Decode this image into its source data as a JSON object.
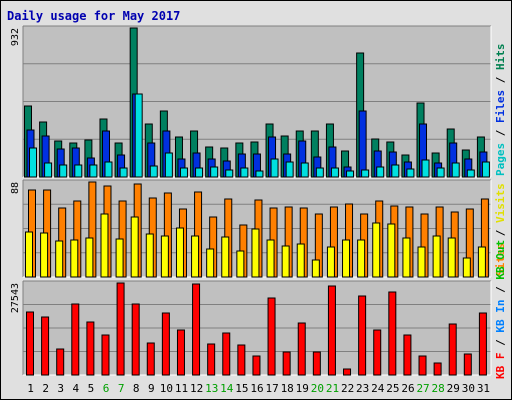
{
  "chart_data": [
    {
      "type": "bar",
      "title": "Daily usage for May 2017",
      "panel": "hits-files-pages",
      "ymax_label": "932",
      "legend": [
        {
          "text": "Pages",
          "color": "#00c0c0"
        },
        {
          "text": "Files",
          "color": "#0030e0"
        },
        {
          "text": "Hits",
          "color": "#008050"
        }
      ],
      "categories": [
        "1",
        "2",
        "3",
        "4",
        "5",
        "6",
        "7",
        "8",
        "9",
        "10",
        "11",
        "12",
        "13",
        "14",
        "15",
        "16",
        "17",
        "18",
        "19",
        "20",
        "21",
        "22",
        "23",
        "24",
        "25",
        "26",
        "27",
        "28",
        "29",
        "30",
        "31"
      ],
      "weekend_days": [
        "6",
        "7",
        "13",
        "14",
        "20",
        "21",
        "27",
        "28"
      ],
      "series": [
        {
          "name": "Hits",
          "color": "#008060",
          "values": [
            445,
            345,
            225,
            215,
            230,
            365,
            215,
            932,
            330,
            415,
            250,
            290,
            185,
            180,
            210,
            220,
            330,
            255,
            290,
            290,
            330,
            160,
            775,
            240,
            220,
            140,
            460,
            150,
            300,
            170,
            250
          ]
        },
        {
          "name": "Files",
          "color": "#0030e0",
          "values": [
            295,
            255,
            175,
            180,
            120,
            290,
            135,
            520,
            210,
            290,
            115,
            150,
            115,
            100,
            145,
            145,
            250,
            145,
            225,
            125,
            190,
            65,
            410,
            165,
            155,
            95,
            330,
            85,
            215,
            110,
            155
          ]
        },
        {
          "name": "Pages",
          "color": "#00e0e0",
          "values": [
            180,
            85,
            75,
            75,
            75,
            95,
            55,
            520,
            70,
            150,
            55,
            55,
            60,
            45,
            55,
            40,
            115,
            95,
            90,
            55,
            55,
            40,
            45,
            60,
            75,
            50,
            105,
            55,
            90,
            45,
            95
          ]
        }
      ],
      "ylim": [
        0,
        932
      ]
    },
    {
      "type": "bar",
      "panel": "visits-sites",
      "ymax_label": "88",
      "legend": [
        {
          "text": "Sites",
          "color": "#ff8000"
        },
        {
          "text": "Visits",
          "color": "#e0e000"
        }
      ],
      "categories": [
        "1",
        "2",
        "3",
        "4",
        "5",
        "6",
        "7",
        "8",
        "9",
        "10",
        "11",
        "12",
        "13",
        "14",
        "15",
        "16",
        "17",
        "18",
        "19",
        "20",
        "21",
        "22",
        "23",
        "24",
        "25",
        "26",
        "27",
        "28",
        "29",
        "30",
        "31"
      ],
      "series": [
        {
          "name": "Sites",
          "color": "#ff8000",
          "values": [
            81,
            81,
            64,
            70,
            88,
            84,
            70,
            86,
            73,
            78,
            63,
            79,
            56,
            72,
            48,
            71,
            64,
            65,
            64,
            58,
            65,
            68,
            58,
            70,
            66,
            65,
            58,
            65,
            60,
            63,
            72
          ]
        },
        {
          "name": "Visits",
          "color": "#ffff00",
          "values": [
            42,
            41,
            33,
            34,
            36,
            58,
            35,
            56,
            40,
            38,
            45,
            38,
            26,
            37,
            24,
            44,
            34,
            29,
            31,
            16,
            28,
            34,
            34,
            50,
            49,
            36,
            28,
            38,
            36,
            18,
            28
          ]
        }
      ],
      "ylim": [
        0,
        88
      ]
    },
    {
      "type": "bar",
      "panel": "kbytes",
      "ymax_label": "27543",
      "legend": [
        {
          "text": "KB F",
          "color": "#ff0000"
        },
        {
          "text": "KB In",
          "color": "#0080ff"
        },
        {
          "text": "KB Out",
          "color": "#00c000"
        }
      ],
      "categories": [
        "1",
        "2",
        "3",
        "4",
        "5",
        "6",
        "7",
        "8",
        "9",
        "10",
        "11",
        "12",
        "13",
        "14",
        "15",
        "16",
        "17",
        "18",
        "19",
        "20",
        "21",
        "22",
        "23",
        "24",
        "25",
        "26",
        "27",
        "28",
        "29",
        "30",
        "31"
      ],
      "series": [
        {
          "name": "KB F",
          "color": "#ff0000",
          "values": [
            19000,
            17400,
            7800,
            21200,
            16000,
            12000,
            27543,
            21300,
            9600,
            18600,
            13500,
            27300,
            9200,
            12700,
            8900,
            5800,
            23100,
            7000,
            15700,
            7000,
            26700,
            1800,
            23600,
            13500,
            24800,
            12100,
            5800,
            3500,
            15400,
            6200,
            18600
          ]
        }
      ],
      "ylim": [
        0,
        27543
      ]
    }
  ]
}
